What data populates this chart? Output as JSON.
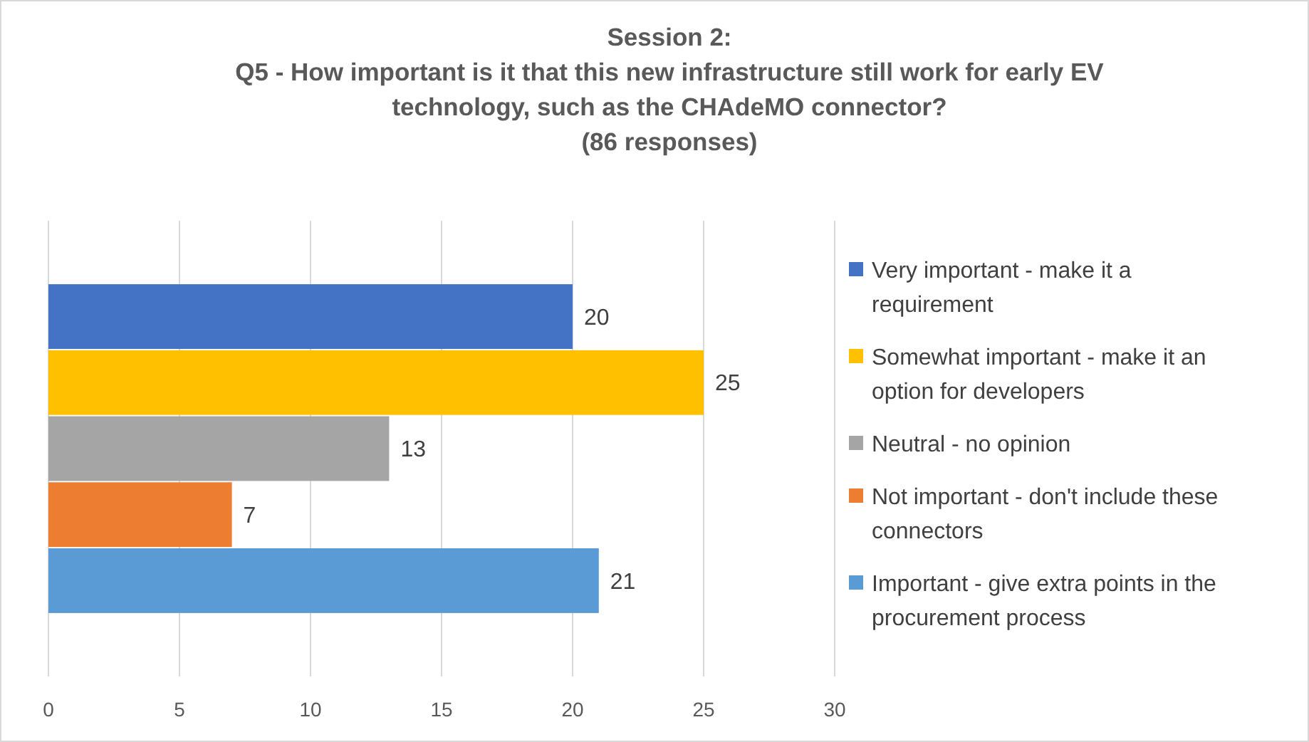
{
  "chart_data": {
    "type": "bar",
    "orientation": "horizontal",
    "title": "Session 2:\nQ5 - How important is it that this new infrastructure still work for early EV\ntechnology, such as the CHAdeMO connector?\n(86 responses)",
    "categories": [
      null
    ],
    "series": [
      {
        "name": "Very important - make it a requirement",
        "color": "#4472c4",
        "values": [
          20
        ]
      },
      {
        "name": "Somewhat important - make it an option for developers",
        "color": "#ffc000",
        "values": [
          25
        ]
      },
      {
        "name": "Neutral - no opinion",
        "color": "#a5a5a5",
        "values": [
          13
        ]
      },
      {
        "name": "Not important - don't include these connectors",
        "color": "#ed7d31",
        "values": [
          7
        ]
      },
      {
        "name": "Important - give extra points in the procurement process",
        "color": "#5b9bd5",
        "values": [
          21
        ]
      }
    ],
    "xlim": [
      0,
      30
    ],
    "xticks": [
      0,
      5,
      10,
      15,
      20,
      25,
      30
    ],
    "grid": "x",
    "legend": "right",
    "data_labels": true
  }
}
